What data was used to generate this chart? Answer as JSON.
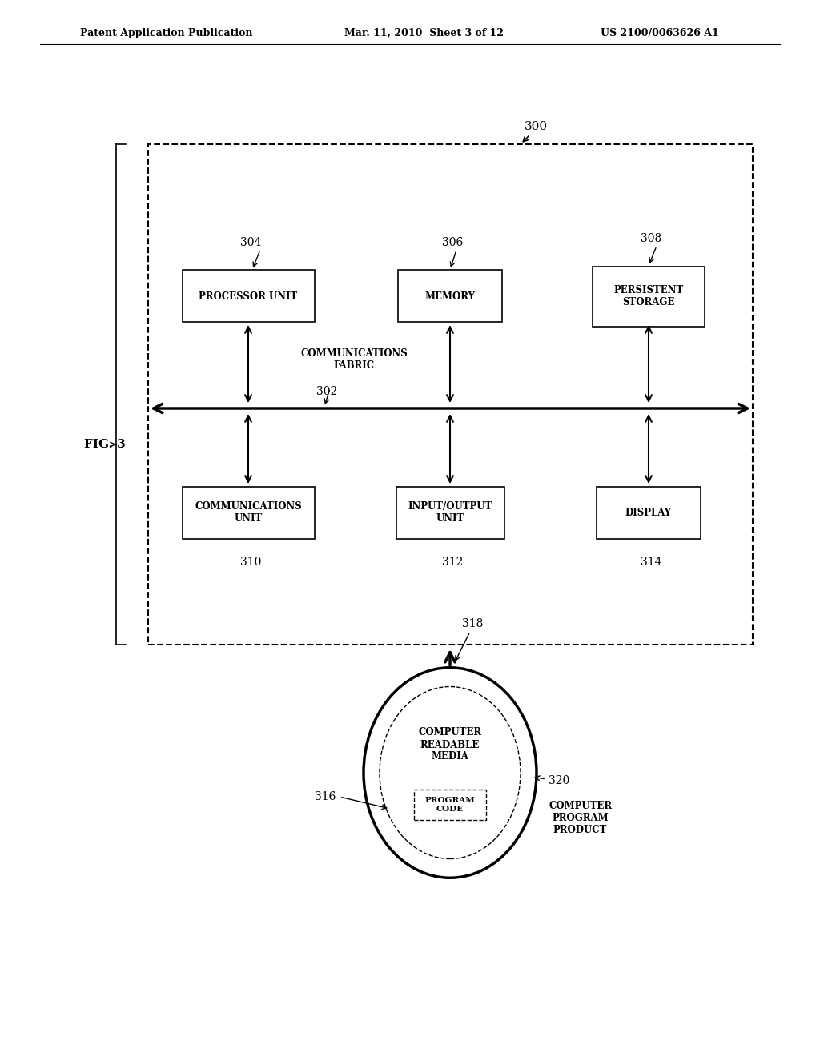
{
  "bg_color": "#ffffff",
  "header_left": "Patent Application Publication",
  "header_mid": "Mar. 11, 2010  Sheet 3 of 12",
  "header_right": "US 2100/0063626 A1",
  "fig_label": "FIG. 3",
  "label_300": "300",
  "label_302": "302",
  "label_304": "304",
  "label_306": "306",
  "label_308": "308",
  "label_310": "310",
  "label_312": "312",
  "label_314": "314",
  "label_316": "316",
  "label_318": "318",
  "label_320": "320",
  "box_proc": "PROCESSOR UNIT",
  "box_mem": "MEMORY",
  "box_pers": "PERSISTENT\nSTORAGE",
  "box_comm": "COMMUNICATIONS\nUNIT",
  "box_io": "INPUT/OUTPUT\nUNIT",
  "box_disp": "DISPLAY",
  "comm_fabric": "COMMUNICATIONS\nFABRIC",
  "circle_text": "COMPUTER\nREADABLE\nMEDIA",
  "prog_code": "PROGRAM\nCODE",
  "comp_prog": "COMPUTER\nPROGRAM\nPRODUCT"
}
